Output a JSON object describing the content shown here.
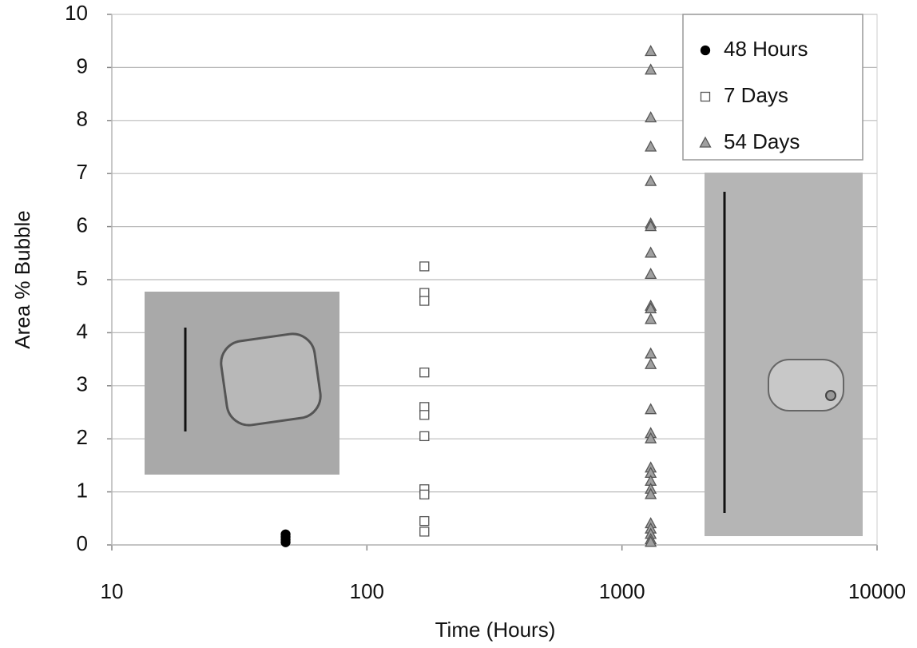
{
  "chart_data": {
    "type": "scatter",
    "xlabel": "Time (Hours)",
    "ylabel": "Area % Bubble",
    "xscale": "log",
    "xlim": [
      10,
      10000
    ],
    "xticks": [
      10,
      100,
      1000,
      10000
    ],
    "ylim": [
      0,
      10
    ],
    "yticks": [
      0,
      1,
      2,
      3,
      4,
      5,
      6,
      7,
      8,
      9,
      10
    ],
    "grid": true,
    "legend": "upper right",
    "series": [
      {
        "name": "48 Hours",
        "marker": "circle",
        "color": "#000000",
        "x": [
          48,
          48,
          48,
          48
        ],
        "values": [
          0.2,
          0.15,
          0.1,
          0.05
        ]
      },
      {
        "name": "7 Days",
        "marker": "square",
        "color": "#ffffff",
        "x": [
          168,
          168,
          168,
          168,
          168,
          168,
          168,
          168,
          168,
          168,
          168
        ],
        "values": [
          5.25,
          4.75,
          4.6,
          3.25,
          2.6,
          2.45,
          2.05,
          1.05,
          0.95,
          0.45,
          0.25
        ]
      },
      {
        "name": "54 Days",
        "marker": "triangle",
        "color": "#a0a0a0",
        "x": [
          1296,
          1296,
          1296,
          1296,
          1296,
          1296,
          1296,
          1296,
          1296,
          1296,
          1296,
          1296,
          1296,
          1296,
          1296,
          1296,
          1296,
          1296,
          1296,
          1296,
          1296,
          1296,
          1296,
          1296,
          1296,
          1296,
          1296
        ],
        "values": [
          9.3,
          8.95,
          8.05,
          7.5,
          6.85,
          6.05,
          6.0,
          5.5,
          5.1,
          4.5,
          4.45,
          4.25,
          3.6,
          3.4,
          2.55,
          2.1,
          2.0,
          1.45,
          1.35,
          1.2,
          1.05,
          0.95,
          0.4,
          0.3,
          0.2,
          0.1,
          0.05
        ]
      }
    ]
  }
}
